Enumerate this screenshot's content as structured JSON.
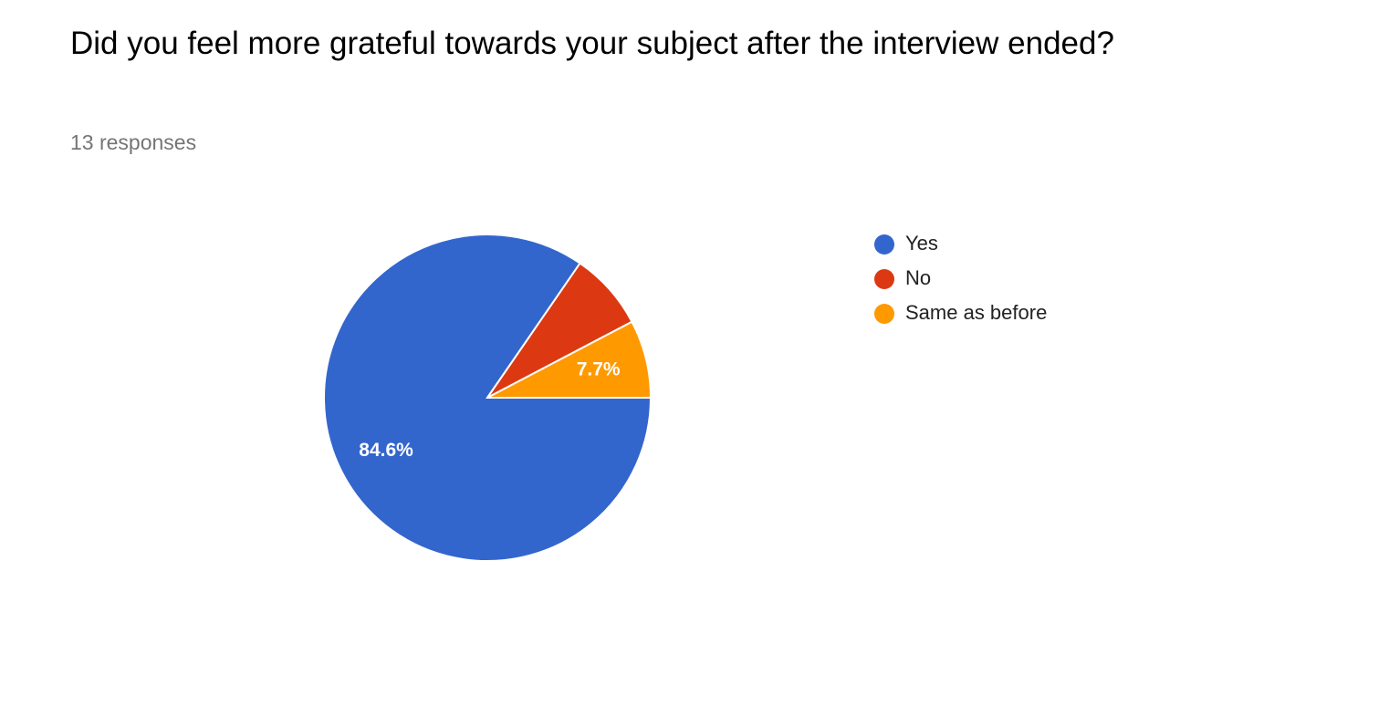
{
  "chart_data": {
    "type": "pie",
    "title": "Did you feel more grateful towards your subject after the interview ended?",
    "subtitle": "13 responses",
    "categories": [
      "Yes",
      "No",
      "Same as before"
    ],
    "values": [
      84.6,
      7.7,
      7.7
    ],
    "value_labels": [
      "84.6%",
      null,
      "7.7%"
    ],
    "colors": [
      "#3366cc",
      "#dc3912",
      "#ff9900"
    ]
  }
}
